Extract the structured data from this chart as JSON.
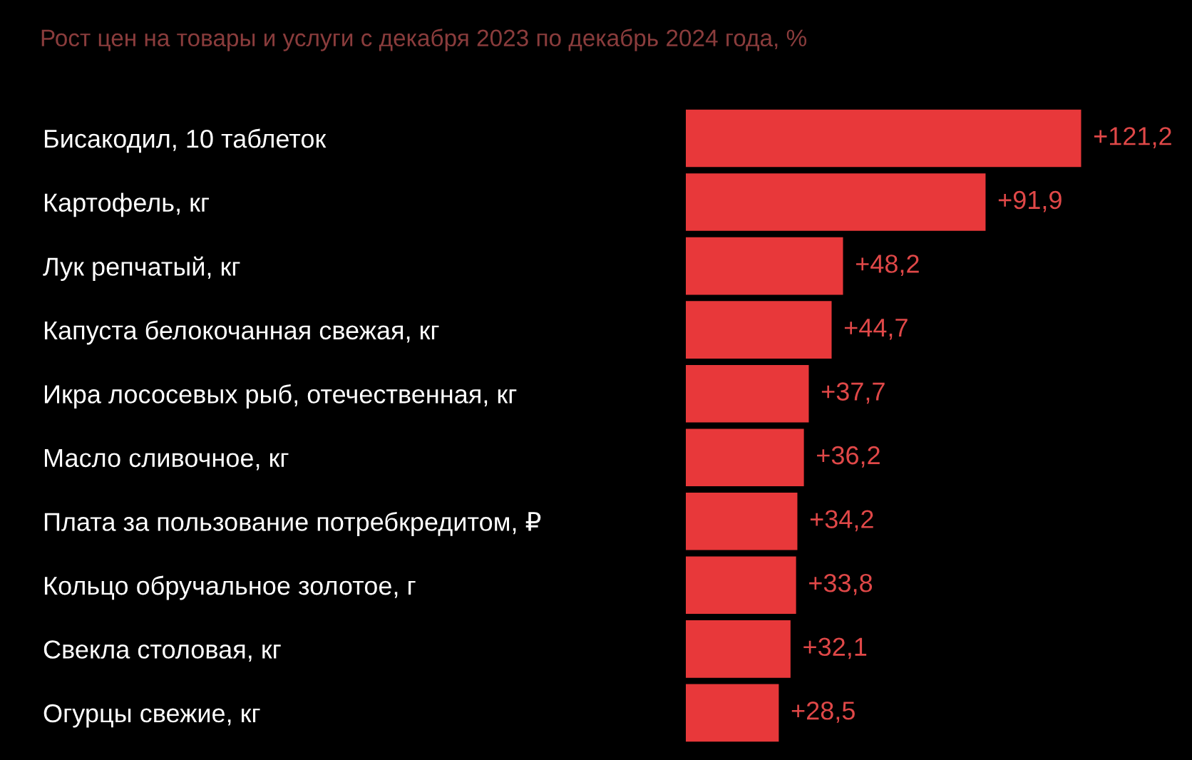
{
  "chart_data": {
    "type": "bar",
    "orientation": "horizontal",
    "title": "Рост цен на товары и услуги с декабря 2023 по декабрь 2024 года, %",
    "categories": [
      "Бисакодил, 10 таблеток",
      "Картофель, кг",
      "Лук репчатый, кг",
      "Капуста белокочанная свежая, кг",
      "Икра лососевых рыб, отечественная, кг",
      "Масло сливочное, кг",
      "Плата за пользование потребкредитом, ₽",
      "Кольцо обручальное золотое, г",
      "Свекла столовая, кг",
      "Огурцы свежие, кг"
    ],
    "values": [
      121.2,
      91.9,
      48.2,
      44.7,
      37.7,
      36.2,
      34.2,
      33.8,
      32.1,
      28.5
    ],
    "value_labels": [
      "+121,2",
      "+91,9",
      "+48,2",
      "+44,7",
      "+37,7",
      "+36,2",
      "+34,2",
      "+33,8",
      "+32,1",
      "+28,5"
    ],
    "color": "#e8383a",
    "tick_labels": "y",
    "grid": false,
    "legend": false
  }
}
